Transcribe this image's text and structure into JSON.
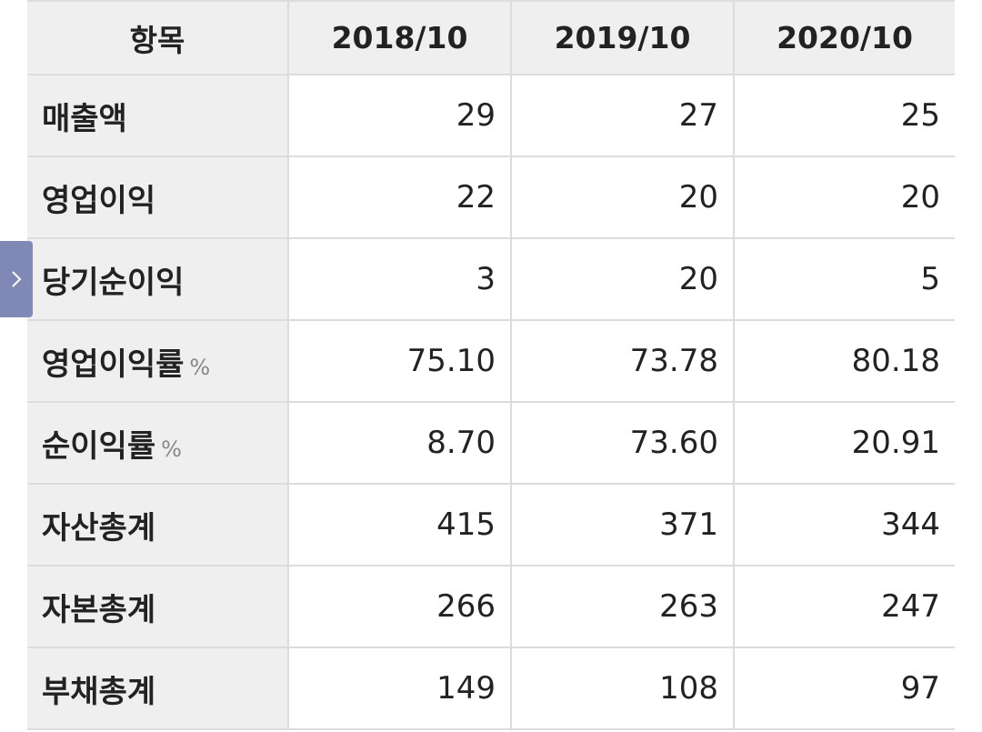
{
  "table": {
    "header": {
      "item": "항목",
      "years": [
        "2018/10",
        "2019/10",
        "2020/10"
      ]
    },
    "rows": [
      {
        "label": "매출액",
        "unit": "",
        "values": [
          "29",
          "27",
          "25"
        ]
      },
      {
        "label": "영업이익",
        "unit": "",
        "values": [
          "22",
          "20",
          "20"
        ]
      },
      {
        "label": "당기순이익",
        "unit": "",
        "values": [
          "3",
          "20",
          "5"
        ]
      },
      {
        "label": "영업이익률",
        "unit": "%",
        "values": [
          "75.10",
          "73.78",
          "80.18"
        ]
      },
      {
        "label": "순이익률",
        "unit": "%",
        "values": [
          "8.70",
          "73.60",
          "20.91"
        ]
      },
      {
        "label": "자산총계",
        "unit": "",
        "values": [
          "415",
          "371",
          "344"
        ]
      },
      {
        "label": "자본총계",
        "unit": "",
        "values": [
          "266",
          "263",
          "247"
        ]
      },
      {
        "label": "부채총계",
        "unit": "",
        "values": [
          "149",
          "108",
          "97"
        ]
      }
    ]
  },
  "side_tab": {
    "icon": "chevron-right-icon",
    "color": "#8089b5"
  }
}
